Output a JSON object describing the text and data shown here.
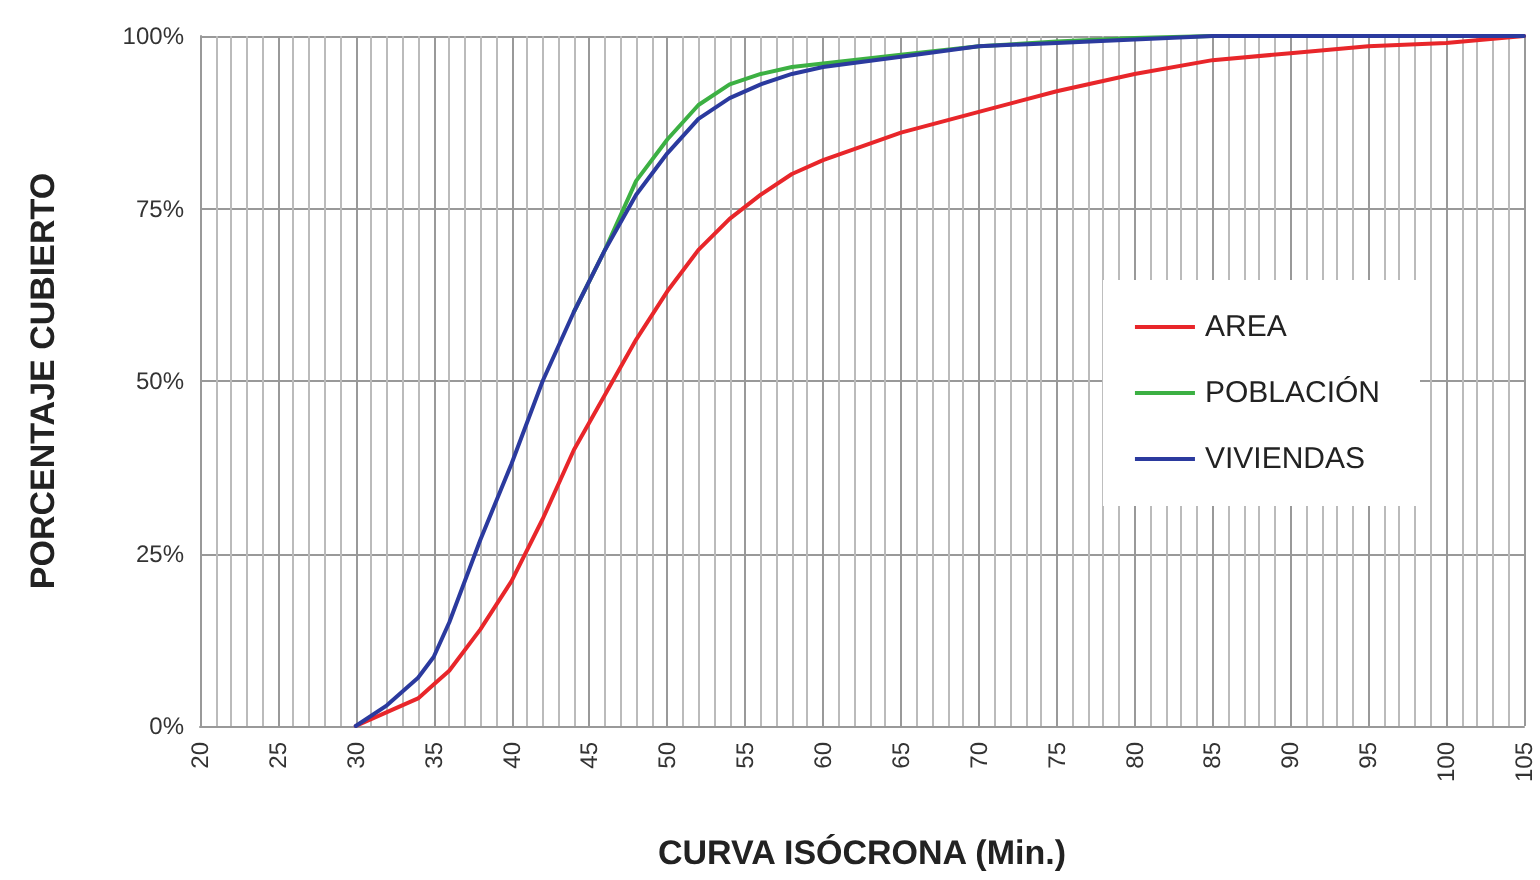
{
  "chart_data": {
    "type": "line",
    "xlabel": "CURVA ISÓCRONA (Min.)",
    "ylabel": "PORCENTAJE CUBIERTO",
    "x": [
      30,
      32,
      34,
      35,
      36,
      38,
      40,
      42,
      44,
      46,
      48,
      50,
      52,
      54,
      56,
      58,
      60,
      65,
      70,
      75,
      80,
      85,
      90,
      95,
      100,
      105
    ],
    "series": [
      {
        "name": "AREA",
        "color": "#e8262a",
        "values": [
          0,
          2,
          4,
          6,
          8,
          14,
          21,
          30,
          40,
          48,
          56,
          63,
          69,
          73.5,
          77,
          80,
          82,
          86,
          89,
          92,
          94.5,
          96.5,
          97.5,
          98.5,
          99,
          100
        ]
      },
      {
        "name": "POBLACIÓN",
        "color": "#3cb043",
        "values": [
          null,
          null,
          null,
          null,
          null,
          null,
          null,
          null,
          60,
          69,
          79,
          85,
          90,
          93,
          94.5,
          95.5,
          96,
          97.3,
          98.5,
          99.2,
          99.7,
          100,
          100,
          null,
          null,
          null
        ]
      },
      {
        "name": "VIVIENDAS",
        "color": "#2b3a9e",
        "values": [
          0,
          3,
          7,
          10,
          15,
          27,
          38,
          50,
          60,
          69,
          77,
          83,
          88,
          91,
          93,
          94.5,
          95.5,
          97,
          98.5,
          99,
          99.5,
          100,
          100,
          100,
          100,
          100
        ]
      }
    ],
    "xlim": [
      20,
      105
    ],
    "xticks": [
      20,
      25,
      30,
      35,
      40,
      45,
      50,
      55,
      60,
      65,
      70,
      75,
      80,
      85,
      90,
      95,
      100,
      105
    ],
    "ylim": [
      0,
      100
    ],
    "yticks": [
      {
        "value": 0,
        "label": "0%"
      },
      {
        "value": 25,
        "label": "25%"
      },
      {
        "value": 50,
        "label": "50%"
      },
      {
        "value": 75,
        "label": "75%"
      },
      {
        "value": 100,
        "label": "100%"
      }
    ],
    "grid": true,
    "legend": "right",
    "marker": "none",
    "line_style": "solid"
  }
}
